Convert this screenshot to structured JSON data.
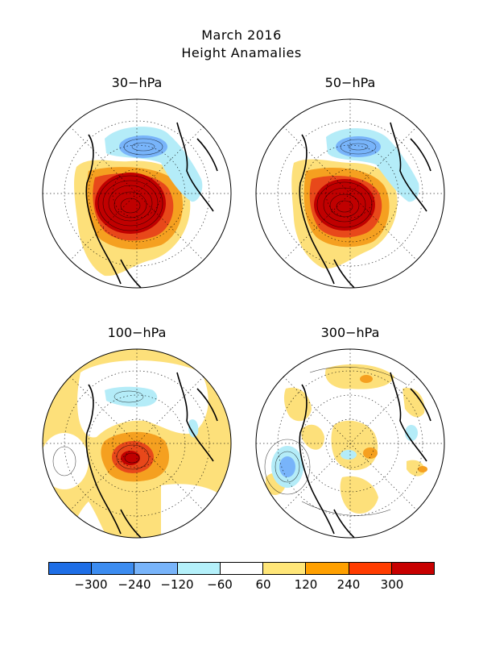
{
  "title_line1": "March 2016",
  "title_line2": "Height Anamalies",
  "panels": [
    {
      "label": "30-hPa"
    },
    {
      "label": "50-hPa"
    },
    {
      "label": "100-hPa"
    },
    {
      "label": "300-hPa"
    }
  ],
  "colorbar": {
    "colors": [
      "#1e6ee6",
      "#3c8cf0",
      "#78b4fa",
      "#b4f0fa",
      "#ffffff",
      "#ffe678",
      "#ffa000",
      "#ff3c00",
      "#c80000"
    ],
    "ticks": [
      "-300",
      "-240",
      "-120",
      "-60",
      "60",
      "120",
      "240",
      "300"
    ]
  },
  "colors": {
    "red_dark": "#c00000",
    "red": "#e8481a",
    "orange": "#f5a020",
    "yellow": "#fde07a",
    "light_blue": "#b4ecf8",
    "blue": "#78b4fa"
  }
}
